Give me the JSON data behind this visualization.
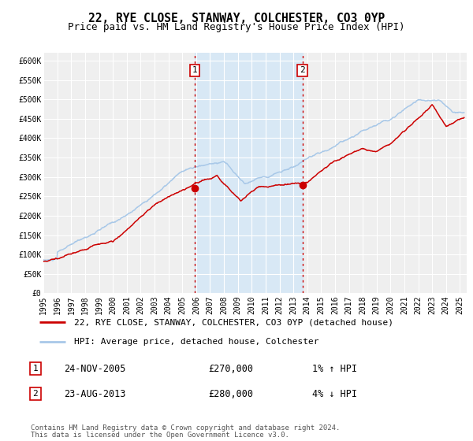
{
  "title": "22, RYE CLOSE, STANWAY, COLCHESTER, CO3 0YP",
  "subtitle": "Price paid vs. HM Land Registry's House Price Index (HPI)",
  "ylim": [
    0,
    620000
  ],
  "yticks": [
    0,
    50000,
    100000,
    150000,
    200000,
    250000,
    300000,
    350000,
    400000,
    450000,
    500000,
    550000,
    600000
  ],
  "ytick_labels": [
    "£0",
    "£50K",
    "£100K",
    "£150K",
    "£200K",
    "£250K",
    "£300K",
    "£350K",
    "£400K",
    "£450K",
    "£500K",
    "£550K",
    "£600K"
  ],
  "xlim_start": 1995.0,
  "xlim_end": 2025.5,
  "xticks": [
    1995,
    1996,
    1997,
    1998,
    1999,
    2000,
    2001,
    2002,
    2003,
    2004,
    2005,
    2006,
    2007,
    2008,
    2009,
    2010,
    2011,
    2012,
    2013,
    2014,
    2015,
    2016,
    2017,
    2018,
    2019,
    2020,
    2021,
    2022,
    2023,
    2024,
    2025
  ],
  "background_color": "#ffffff",
  "plot_bg_color": "#efefef",
  "grid_color": "#ffffff",
  "hpi_line_color": "#a8c8e8",
  "price_line_color": "#cc0000",
  "shaded_region_color": "#d8e8f5",
  "marker1_x": 2005.9,
  "marker1_y": 270000,
  "marker2_x": 2013.65,
  "marker2_y": 280000,
  "vline1_x": 2005.9,
  "vline2_x": 2013.65,
  "annotation1_label": "1",
  "annotation2_label": "2",
  "annotation1_date": "24-NOV-2005",
  "annotation1_price": "£270,000",
  "annotation1_hpi": "1% ↑ HPI",
  "annotation2_date": "23-AUG-2013",
  "annotation2_price": "£280,000",
  "annotation2_hpi": "4% ↓ HPI",
  "legend_line1": "22, RYE CLOSE, STANWAY, COLCHESTER, CO3 0YP (detached house)",
  "legend_line2": "HPI: Average price, detached house, Colchester",
  "footer_line1": "Contains HM Land Registry data © Crown copyright and database right 2024.",
  "footer_line2": "This data is licensed under the Open Government Licence v3.0.",
  "title_fontsize": 10.5,
  "subtitle_fontsize": 9,
  "tick_fontsize": 7,
  "legend_fontsize": 8,
  "annot_fontsize": 8.5,
  "footer_fontsize": 6.5
}
